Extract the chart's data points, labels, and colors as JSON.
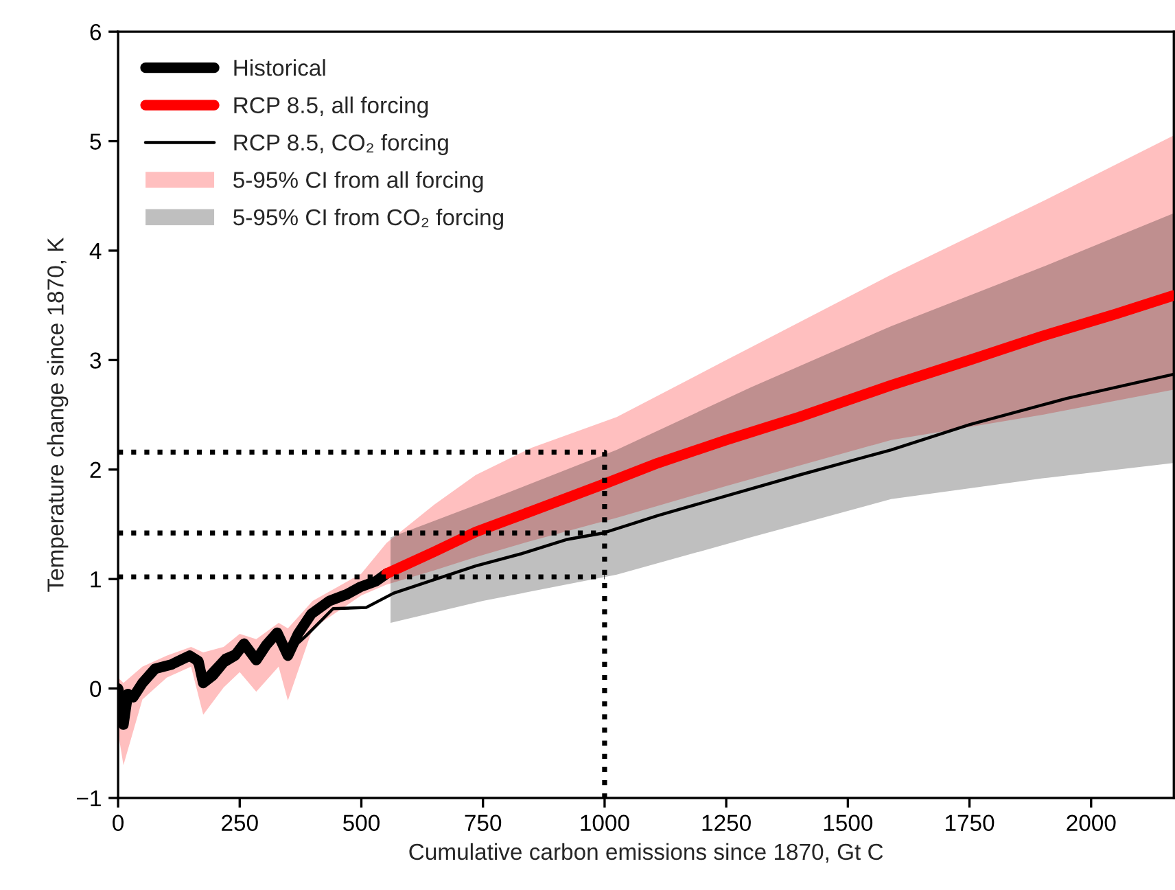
{
  "chart_data": {
    "type": "line",
    "xlabel": "Cumulative carbon emissions since 1870, Gt C",
    "ylabel": "Temperature change since 1870, K",
    "xlim": [
      0,
      2170
    ],
    "ylim": [
      -1,
      6
    ],
    "xticks": [
      0,
      250,
      500,
      750,
      1000,
      1250,
      1500,
      1750,
      2000
    ],
    "yticks": [
      -1,
      0,
      1,
      2,
      3,
      4,
      5,
      6
    ],
    "grid": false,
    "legend": "top left",
    "line_style": "solid",
    "marker": "none",
    "series": [
      {
        "name": "Historical",
        "type": "line",
        "color": "#000000",
        "x": [
          0,
          5,
          11,
          20,
          31,
          50,
          76,
          110,
          147,
          165,
          175,
          195,
          217,
          240,
          259,
          284,
          305,
          327,
          349,
          370,
          397,
          434,
          470,
          499,
          530,
          552
        ],
        "values": [
          0.0,
          -0.1,
          -0.33,
          -0.05,
          -0.08,
          0.05,
          0.18,
          0.22,
          0.3,
          0.25,
          0.05,
          0.12,
          0.24,
          0.3,
          0.41,
          0.26,
          0.4,
          0.51,
          0.3,
          0.5,
          0.68,
          0.8,
          0.86,
          0.93,
          0.98,
          1.05
        ]
      },
      {
        "name": "RCP 8.5, all forcing",
        "type": "line",
        "color": "#ff0000",
        "x": [
          552,
          650,
          735,
          850,
          1000,
          1110,
          1250,
          1400,
          1589,
          1750,
          1900,
          2050,
          2169
        ],
        "values": [
          1.05,
          1.25,
          1.43,
          1.62,
          1.87,
          2.06,
          2.27,
          2.48,
          2.77,
          3.0,
          3.22,
          3.42,
          3.59
        ]
      },
      {
        "name": "RCP 8.5, CO₂ forcing",
        "type": "line",
        "color": "#000000",
        "x": [
          0,
          11,
          31,
          76,
          147,
          175,
          217,
          259,
          284,
          327,
          349,
          386,
          442,
          510,
          566,
          640,
          735,
          828,
          921,
          997,
          1110,
          1250,
          1400,
          1589,
          1750,
          1950,
          2169
        ],
        "values": [
          0.0,
          -0.3,
          -0.05,
          0.18,
          0.3,
          0.1,
          0.3,
          0.38,
          0.28,
          0.46,
          0.33,
          0.48,
          0.73,
          0.74,
          0.87,
          0.98,
          1.12,
          1.23,
          1.36,
          1.42,
          1.58,
          1.76,
          1.95,
          2.18,
          2.41,
          2.65,
          2.87
        ]
      },
      {
        "name": "5-95% CI from all forcing",
        "type": "area",
        "color": "#ffbfbf",
        "x": [
          0,
          11,
          50,
          100,
          150,
          175,
          217,
          250,
          284,
          330,
          349,
          400,
          500,
          552,
          650,
          735,
          850,
          1025,
          1250,
          1589,
          1900,
          2169
        ],
        "values": [
          null,
          null,
          null,
          null,
          null,
          null,
          null,
          null,
          null,
          null,
          null,
          null,
          null,
          null,
          null,
          null,
          null,
          null,
          null,
          null,
          null,
          null
        ],
        "lower": [
          -0.4,
          -0.7,
          -0.1,
          0.1,
          0.2,
          -0.24,
          0.01,
          0.15,
          -0.03,
          0.2,
          -0.11,
          0.55,
          0.85,
          0.95,
          1.08,
          1.2,
          1.35,
          1.56,
          1.85,
          2.27,
          2.5,
          2.73
        ],
        "upper": [
          0.1,
          0.05,
          0.2,
          0.3,
          0.38,
          0.33,
          0.38,
          0.5,
          0.45,
          0.6,
          0.55,
          0.8,
          1.05,
          1.33,
          1.68,
          1.95,
          2.2,
          2.48,
          3.0,
          3.78,
          4.45,
          5.05
        ]
      },
      {
        "name": "5-95% CI from CO₂ forcing",
        "type": "area",
        "color": "#bfbfbf",
        "x": [
          560,
          750,
          1025,
          1300,
          1589,
          1900,
          2169
        ],
        "values": [
          null,
          null,
          null,
          null,
          null,
          null,
          null
        ],
        "lower": [
          0.6,
          0.8,
          1.04,
          1.38,
          1.73,
          1.92,
          2.06
        ],
        "upper": [
          1.38,
          1.7,
          2.18,
          2.75,
          3.31,
          3.85,
          4.34
        ]
      },
      {
        "type": "line",
        "color": "#000000",
        "line_style": "dotted",
        "x": [
          0,
          1000,
          1000
        ],
        "values": [
          2.16,
          2.16,
          -1
        ]
      },
      {
        "type": "line",
        "color": "#000000",
        "line_style": "dotted",
        "x": [
          0,
          1000
        ],
        "values": [
          1.42,
          1.42
        ]
      },
      {
        "type": "line",
        "color": "#000000",
        "line_style": "dotted",
        "x": [
          0,
          1000
        ],
        "values": [
          1.02,
          1.02
        ]
      }
    ]
  }
}
